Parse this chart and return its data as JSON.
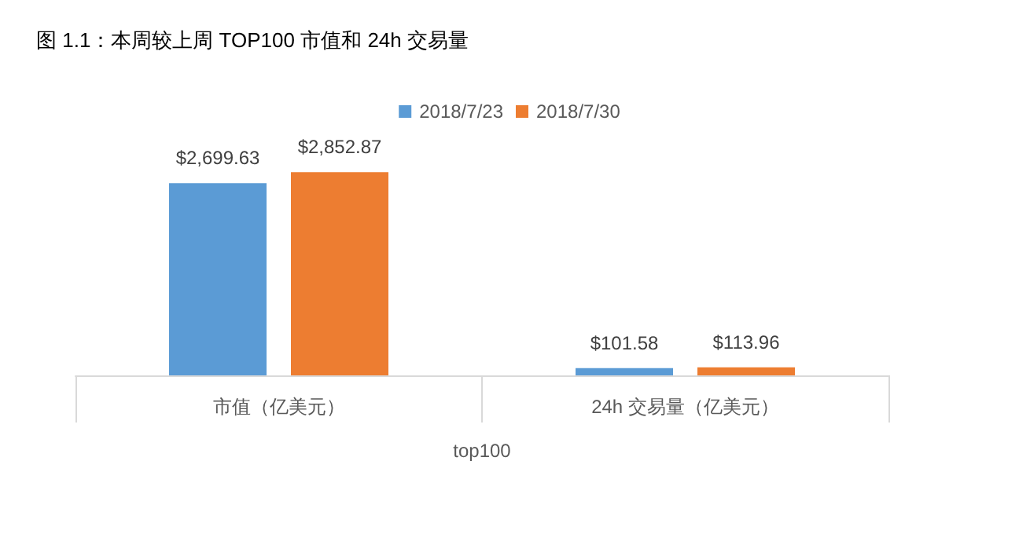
{
  "chart_data": {
    "type": "bar",
    "title": "图 1.1：本周较上周 TOP100 市值和 24h 交易量",
    "xlabel": "top100",
    "categories": [
      "市值（亿美元）",
      "24h 交易量（亿美元）"
    ],
    "series": [
      {
        "name": "2018/7/23",
        "color": "#5b9bd5",
        "values": [
          2699.63,
          101.58
        ],
        "value_labels": [
          "$2,699.63",
          "$101.58"
        ]
      },
      {
        "name": "2018/7/30",
        "color": "#ed7d31",
        "values": [
          2852.87,
          113.96
        ],
        "value_labels": [
          "$2,852.87",
          "$113.96"
        ]
      }
    ],
    "legend": "top",
    "grid": false
  }
}
